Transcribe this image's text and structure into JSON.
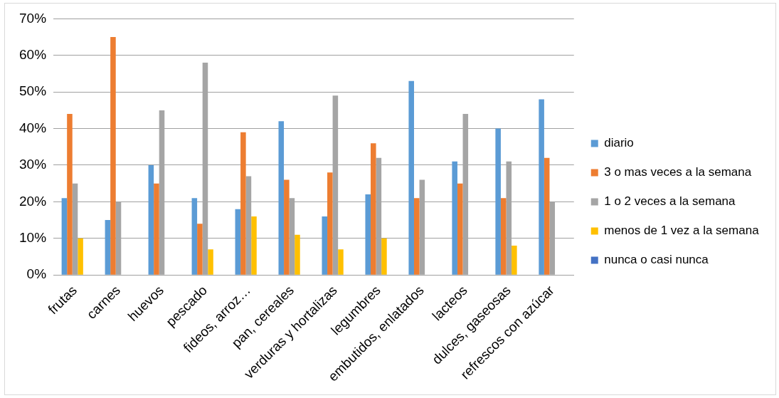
{
  "chart_data": {
    "type": "bar",
    "categories": [
      "frutas",
      "carnes",
      "huevos",
      "pescado",
      "fideos, arroz…",
      "pan, cereales",
      "verduras y hortalizas",
      "legumbres",
      "embutidos, enlatados",
      "lacteos",
      "dulces, gaseosas",
      "refrescos con azúcar"
    ],
    "series": [
      {
        "name": "diario",
        "color": "#5b9bd5",
        "values": [
          21,
          15,
          30,
          21,
          18,
          42,
          16,
          22,
          53,
          31,
          40,
          48
        ]
      },
      {
        "name": "3 o mas veces a la semana",
        "color": "#ed7d31",
        "values": [
          44,
          65,
          25,
          14,
          39,
          26,
          28,
          36,
          21,
          25,
          21,
          32
        ]
      },
      {
        "name": "1 o 2 veces a la semana",
        "color": "#a5a5a5",
        "values": [
          25,
          20,
          45,
          58,
          27,
          21,
          49,
          32,
          26,
          44,
          31,
          20
        ]
      },
      {
        "name": "menos de 1 vez a la semana",
        "color": "#ffc000",
        "values": [
          10,
          0,
          0,
          7,
          16,
          11,
          7,
          10,
          0,
          0,
          8,
          0
        ]
      },
      {
        "name": "nunca o casi nunca",
        "color": "#4472c4",
        "values": [
          0,
          0,
          0,
          0,
          0,
          0,
          0,
          0,
          0,
          0,
          0,
          0
        ]
      }
    ],
    "ylim": [
      0,
      70
    ],
    "yticks": [
      {
        "value": 0,
        "label": "0%"
      },
      {
        "value": 10,
        "label": "10%"
      },
      {
        "value": 20,
        "label": "20%"
      },
      {
        "value": 30,
        "label": "30%"
      },
      {
        "value": 40,
        "label": "40%"
      },
      {
        "value": 50,
        "label": "50%"
      },
      {
        "value": 60,
        "label": "60%"
      },
      {
        "value": 70,
        "label": "70%"
      }
    ],
    "grid": "y",
    "legend": "right"
  }
}
